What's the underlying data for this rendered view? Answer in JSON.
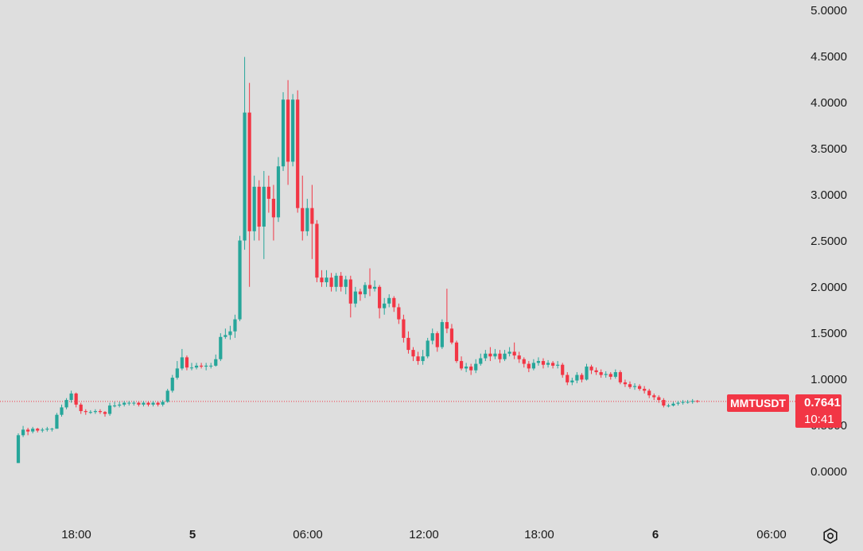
{
  "chart_data": {
    "type": "candlestick",
    "symbol": "MMTUSDT",
    "last_price": "0.7641",
    "countdown": "10:41",
    "y_ticks": [
      "5.0000",
      "4.5000",
      "4.0000",
      "3.5000",
      "3.0000",
      "2.5000",
      "2.0000",
      "1.5000",
      "1.0000",
      "0.5000",
      "0.0000"
    ],
    "x_ticks": [
      "18:00",
      "5",
      "06:00",
      "12:00",
      "18:00",
      "6",
      "06:00"
    ],
    "ylim": [
      -0.5,
      5.1
    ],
    "grid": false,
    "colors": {
      "up": "#26a69a",
      "down": "#f23645",
      "background": "#dedede"
    },
    "series": [
      [
        0.1,
        0.4,
        0.1,
        0.42
      ],
      [
        0.4,
        0.46,
        0.38,
        0.5
      ],
      [
        0.46,
        0.44,
        0.4,
        0.48
      ],
      [
        0.44,
        0.47,
        0.42,
        0.49
      ],
      [
        0.47,
        0.45,
        0.43,
        0.48
      ],
      [
        0.45,
        0.46,
        0.43,
        0.48
      ],
      [
        0.46,
        0.47,
        0.44,
        0.49
      ],
      [
        0.47,
        0.47,
        0.44,
        0.48
      ],
      [
        0.47,
        0.62,
        0.47,
        0.64
      ],
      [
        0.62,
        0.7,
        0.6,
        0.73
      ],
      [
        0.7,
        0.78,
        0.68,
        0.8
      ],
      [
        0.78,
        0.85,
        0.75,
        0.88
      ],
      [
        0.85,
        0.73,
        0.7,
        0.86
      ],
      [
        0.73,
        0.66,
        0.63,
        0.75
      ],
      [
        0.66,
        0.65,
        0.62,
        0.68
      ],
      [
        0.65,
        0.65,
        0.63,
        0.67
      ],
      [
        0.65,
        0.66,
        0.63,
        0.68
      ],
      [
        0.66,
        0.65,
        0.63,
        0.68
      ],
      [
        0.65,
        0.63,
        0.6,
        0.66
      ],
      [
        0.63,
        0.72,
        0.61,
        0.75
      ],
      [
        0.72,
        0.72,
        0.7,
        0.76
      ],
      [
        0.72,
        0.73,
        0.7,
        0.76
      ],
      [
        0.73,
        0.75,
        0.71,
        0.77
      ],
      [
        0.75,
        0.75,
        0.72,
        0.77
      ],
      [
        0.75,
        0.75,
        0.72,
        0.77
      ],
      [
        0.75,
        0.73,
        0.71,
        0.76
      ],
      [
        0.73,
        0.75,
        0.71,
        0.77
      ],
      [
        0.75,
        0.73,
        0.71,
        0.76
      ],
      [
        0.73,
        0.75,
        0.71,
        0.77
      ],
      [
        0.75,
        0.73,
        0.71,
        0.76
      ],
      [
        0.73,
        0.76,
        0.71,
        0.78
      ],
      [
        0.76,
        0.88,
        0.75,
        0.9
      ],
      [
        0.88,
        1.02,
        0.86,
        1.05
      ],
      [
        1.02,
        1.12,
        1.0,
        1.2
      ],
      [
        1.12,
        1.24,
        1.1,
        1.33
      ],
      [
        1.24,
        1.13,
        1.1,
        1.26
      ],
      [
        1.13,
        1.13,
        1.1,
        1.18
      ],
      [
        1.13,
        1.15,
        1.11,
        1.18
      ],
      [
        1.15,
        1.14,
        1.12,
        1.18
      ],
      [
        1.14,
        1.15,
        1.1,
        1.18
      ],
      [
        1.15,
        1.15,
        1.12,
        1.18
      ],
      [
        1.15,
        1.22,
        1.14,
        1.27
      ],
      [
        1.22,
        1.46,
        1.2,
        1.5
      ],
      [
        1.46,
        1.48,
        1.44,
        1.55
      ],
      [
        1.48,
        1.52,
        1.43,
        1.58
      ],
      [
        1.52,
        1.65,
        1.45,
        1.7
      ],
      [
        1.65,
        2.5,
        1.63,
        2.55
      ],
      [
        2.5,
        3.88,
        2.4,
        4.48
      ],
      [
        3.88,
        2.6,
        2.0,
        4.2
      ],
      [
        2.6,
        3.08,
        2.5,
        3.2
      ],
      [
        3.08,
        2.65,
        2.5,
        3.15
      ],
      [
        2.65,
        3.08,
        2.3,
        3.25
      ],
      [
        3.08,
        2.95,
        2.8,
        3.2
      ],
      [
        2.95,
        2.75,
        2.5,
        3.1
      ],
      [
        2.75,
        3.3,
        2.7,
        3.4
      ],
      [
        3.3,
        4.02,
        3.25,
        4.1
      ],
      [
        4.02,
        3.35,
        3.1,
        4.23
      ],
      [
        3.35,
        4.02,
        3.3,
        4.08
      ],
      [
        4.02,
        2.85,
        2.8,
        4.12
      ],
      [
        2.85,
        2.6,
        2.5,
        3.2
      ],
      [
        2.6,
        2.85,
        2.55,
        2.95
      ],
      [
        2.85,
        2.68,
        2.3,
        3.1
      ],
      [
        2.68,
        2.1,
        2.05,
        2.72
      ],
      [
        2.1,
        2.05,
        2.0,
        2.18
      ],
      [
        2.05,
        2.1,
        2.0,
        2.18
      ],
      [
        2.1,
        2.0,
        1.95,
        2.15
      ],
      [
        2.0,
        2.12,
        1.95,
        2.15
      ],
      [
        2.12,
        2.0,
        1.95,
        2.16
      ],
      [
        2.0,
        2.08,
        1.92,
        2.12
      ],
      [
        2.08,
        1.82,
        1.67,
        2.12
      ],
      [
        1.82,
        1.95,
        1.78,
        2.0
      ],
      [
        1.95,
        1.92,
        1.85,
        1.98
      ],
      [
        1.92,
        2.02,
        1.88,
        2.05
      ],
      [
        2.02,
        1.98,
        1.9,
        2.2
      ],
      [
        1.98,
        2.0,
        1.95,
        2.07
      ],
      [
        2.0,
        1.77,
        1.66,
        2.02
      ],
      [
        1.77,
        1.82,
        1.7,
        1.88
      ],
      [
        1.82,
        1.88,
        1.78,
        1.92
      ],
      [
        1.88,
        1.78,
        1.73,
        1.9
      ],
      [
        1.78,
        1.65,
        1.6,
        1.82
      ],
      [
        1.65,
        1.45,
        1.4,
        1.7
      ],
      [
        1.45,
        1.32,
        1.28,
        1.52
      ],
      [
        1.32,
        1.25,
        1.2,
        1.35
      ],
      [
        1.25,
        1.2,
        1.16,
        1.3
      ],
      [
        1.2,
        1.25,
        1.16,
        1.32
      ],
      [
        1.25,
        1.42,
        1.23,
        1.45
      ],
      [
        1.42,
        1.5,
        1.38,
        1.55
      ],
      [
        1.5,
        1.35,
        1.3,
        1.52
      ],
      [
        1.35,
        1.62,
        1.33,
        1.65
      ],
      [
        1.62,
        1.55,
        1.5,
        1.98
      ],
      [
        1.55,
        1.4,
        1.38,
        1.6
      ],
      [
        1.4,
        1.2,
        1.18,
        1.42
      ],
      [
        1.2,
        1.12,
        1.1,
        1.25
      ],
      [
        1.12,
        1.14,
        1.08,
        1.18
      ],
      [
        1.14,
        1.1,
        1.05,
        1.17
      ],
      [
        1.1,
        1.17,
        1.07,
        1.22
      ],
      [
        1.17,
        1.23,
        1.15,
        1.28
      ],
      [
        1.23,
        1.28,
        1.2,
        1.32
      ],
      [
        1.28,
        1.25,
        1.2,
        1.35
      ],
      [
        1.25,
        1.28,
        1.22,
        1.33
      ],
      [
        1.28,
        1.22,
        1.18,
        1.32
      ],
      [
        1.22,
        1.28,
        1.2,
        1.32
      ],
      [
        1.28,
        1.3,
        1.25,
        1.35
      ],
      [
        1.3,
        1.26,
        1.22,
        1.4
      ],
      [
        1.26,
        1.22,
        1.18,
        1.3
      ],
      [
        1.22,
        1.17,
        1.13,
        1.24
      ],
      [
        1.17,
        1.12,
        1.08,
        1.2
      ],
      [
        1.12,
        1.18,
        1.1,
        1.22
      ],
      [
        1.18,
        1.2,
        1.15,
        1.24
      ],
      [
        1.2,
        1.16,
        1.12,
        1.23
      ],
      [
        1.16,
        1.18,
        1.13,
        1.21
      ],
      [
        1.18,
        1.15,
        1.12,
        1.2
      ],
      [
        1.15,
        1.16,
        1.12,
        1.2
      ],
      [
        1.16,
        1.05,
        1.02,
        1.18
      ],
      [
        1.05,
        0.97,
        0.94,
        1.08
      ],
      [
        0.97,
        0.99,
        0.94,
        1.02
      ],
      [
        0.99,
        1.05,
        0.96,
        1.08
      ],
      [
        1.05,
        1.0,
        0.97,
        1.07
      ],
      [
        1.0,
        1.14,
        0.99,
        1.17
      ],
      [
        1.14,
        1.1,
        1.06,
        1.16
      ],
      [
        1.1,
        1.08,
        1.05,
        1.13
      ],
      [
        1.08,
        1.05,
        1.02,
        1.11
      ],
      [
        1.05,
        1.06,
        1.02,
        1.09
      ],
      [
        1.06,
        1.03,
        1.0,
        1.08
      ],
      [
        1.03,
        1.08,
        1.01,
        1.11
      ],
      [
        1.08,
        0.97,
        0.95,
        1.1
      ],
      [
        0.97,
        0.95,
        0.92,
        1.0
      ],
      [
        0.95,
        0.92,
        0.9,
        0.98
      ],
      [
        0.92,
        0.93,
        0.89,
        0.96
      ],
      [
        0.93,
        0.9,
        0.88,
        0.95
      ],
      [
        0.9,
        0.88,
        0.85,
        0.93
      ],
      [
        0.88,
        0.83,
        0.8,
        0.9
      ],
      [
        0.83,
        0.81,
        0.78,
        0.85
      ],
      [
        0.81,
        0.78,
        0.75,
        0.83
      ],
      [
        0.78,
        0.72,
        0.7,
        0.8
      ],
      [
        0.72,
        0.72,
        0.7,
        0.74
      ],
      [
        0.72,
        0.74,
        0.71,
        0.76
      ],
      [
        0.74,
        0.75,
        0.72,
        0.77
      ],
      [
        0.75,
        0.76,
        0.73,
        0.78
      ],
      [
        0.76,
        0.76,
        0.74,
        0.78
      ],
      [
        0.76,
        0.77,
        0.74,
        0.79
      ],
      [
        0.77,
        0.7641,
        0.75,
        0.78
      ]
    ]
  }
}
